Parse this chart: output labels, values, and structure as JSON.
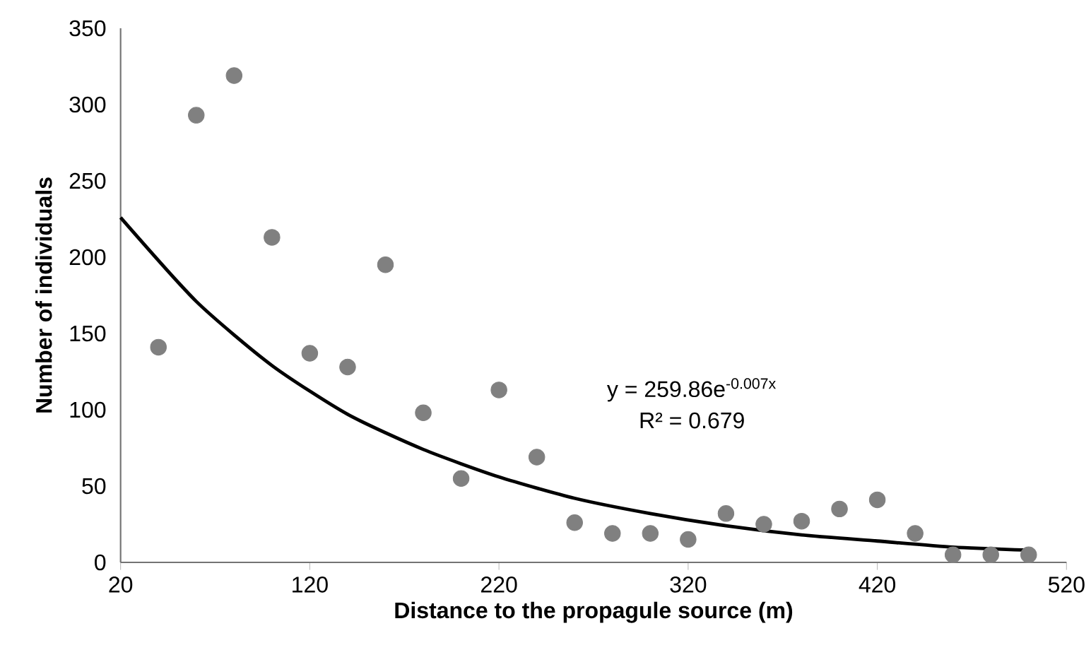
{
  "chart_data": {
    "type": "scatter",
    "xlabel": "Distance to the propagule source (m)",
    "ylabel": "Number of individuals",
    "xlim": [
      20,
      520
    ],
    "xticks": [
      20,
      120,
      220,
      320,
      420,
      520
    ],
    "ylim": [
      0,
      350
    ],
    "yticks": [
      0,
      50,
      100,
      150,
      200,
      250,
      300,
      350
    ],
    "series": [
      {
        "type": "scatter",
        "color": "#808080",
        "marker": "circle",
        "x": [
          40,
          60,
          80,
          100,
          120,
          140,
          160,
          180,
          200,
          220,
          240,
          260,
          280,
          300,
          320,
          340,
          360,
          380,
          400,
          420,
          440,
          460,
          480,
          500
        ],
        "values": [
          141,
          293,
          319,
          213,
          137,
          128,
          195,
          98,
          55,
          113,
          69,
          26,
          19,
          19,
          15,
          32,
          25,
          27,
          35,
          41,
          19,
          5,
          5,
          5
        ]
      },
      {
        "type": "line",
        "color": "#000000",
        "line_style": "solid",
        "marker": "none",
        "x": [
          20,
          60,
          100,
          140,
          180,
          220,
          260,
          300,
          340,
          380,
          420,
          460,
          500
        ],
        "values": [
          226,
          171,
          129,
          97,
          74,
          56,
          42,
          32,
          24,
          18,
          14,
          10,
          8
        ]
      }
    ],
    "annotations": [
      "y = 259.86e$^{-0.007x}$",
      "R² = 0.679"
    ]
  }
}
